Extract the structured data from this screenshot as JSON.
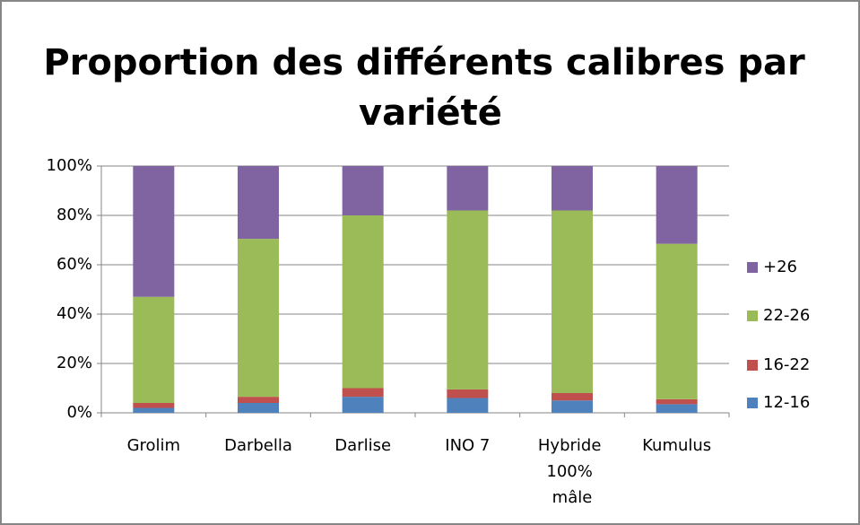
{
  "chart_data": {
    "type": "stacked_bar_100",
    "title": "Proportion des différents calibres par variété",
    "categories": [
      "Grolim",
      "Darbella",
      "Darlise",
      "INO 7",
      "Hybride 100% mâle",
      "Kumulus"
    ],
    "series": [
      {
        "name": "12-16",
        "color": "#4f81bd",
        "values": [
          2,
          4,
          6.5,
          6,
          5,
          3.5
        ]
      },
      {
        "name": "16-22",
        "color": "#c0504d",
        "values": [
          2,
          2.5,
          3.5,
          3.5,
          3,
          2
        ]
      },
      {
        "name": "22-26",
        "color": "#9bbb59",
        "values": [
          43,
          64,
          70,
          72.5,
          74,
          63
        ]
      },
      {
        "name": "+26",
        "color": "#8064a2",
        "values": [
          53,
          29.5,
          20,
          18,
          18,
          31.5
        ]
      }
    ],
    "ylim": [
      0,
      100
    ],
    "yticks": [
      {
        "value": 0,
        "label": "0%"
      },
      {
        "value": 20,
        "label": "20%"
      },
      {
        "value": 40,
        "label": "40%"
      },
      {
        "value": 60,
        "label": "60%"
      },
      {
        "value": 80,
        "label": "80%"
      },
      {
        "value": 100,
        "label": "100%"
      }
    ],
    "grid": true,
    "legend": "right"
  }
}
